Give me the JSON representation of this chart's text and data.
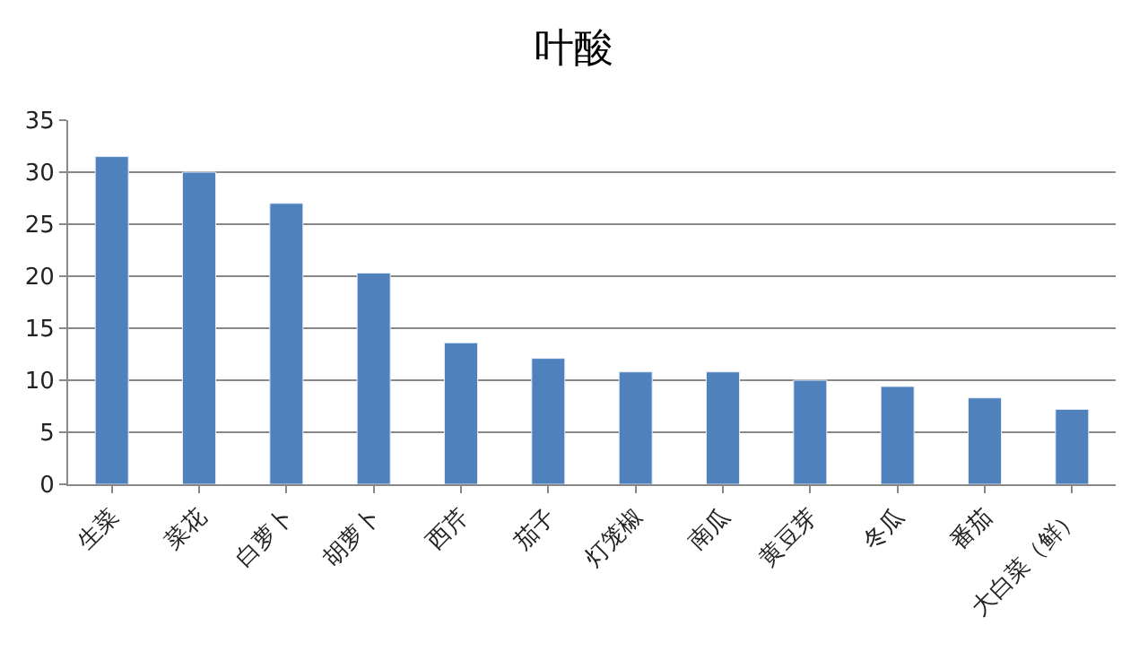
{
  "chart_data": {
    "type": "bar",
    "title": "叶酸",
    "categories": [
      "生菜",
      "菜花",
      "白萝卜",
      "胡萝卜",
      "西芹",
      "茄子",
      "灯笼椒",
      "南瓜",
      "黄豆芽",
      "冬瓜",
      "番茄",
      "大白菜（鲜）"
    ],
    "values": [
      31.5,
      30,
      27,
      20.3,
      13.6,
      12.1,
      10.8,
      10.8,
      10,
      9.4,
      8.3,
      7.2
    ],
    "color": "#4f81bd",
    "ylim": [
      0,
      35
    ],
    "yticks": [
      0,
      5,
      10,
      15,
      20,
      25,
      30,
      35
    ],
    "grid": "y"
  }
}
